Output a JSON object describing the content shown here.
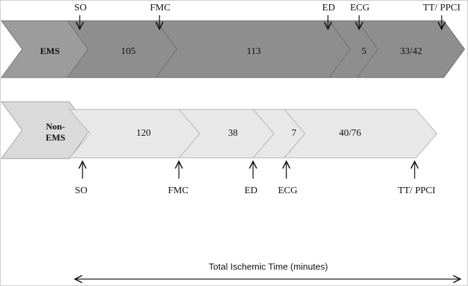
{
  "ems": {
    "label": "EMS",
    "segments": [
      "105",
      "113",
      "5",
      "33/42"
    ],
    "markers": [
      "SO",
      "FMC",
      "ED",
      "ECG",
      "TT/ PPCI"
    ]
  },
  "non_ems": {
    "label": [
      "Non-",
      "EMS"
    ],
    "segments": [
      "120",
      "38",
      "7",
      "40/76"
    ],
    "markers": [
      "SO",
      "FMC",
      "ED",
      "ECG",
      "TT/ PPCI"
    ]
  },
  "footer": "Total Ischemic Time (minutes)"
}
